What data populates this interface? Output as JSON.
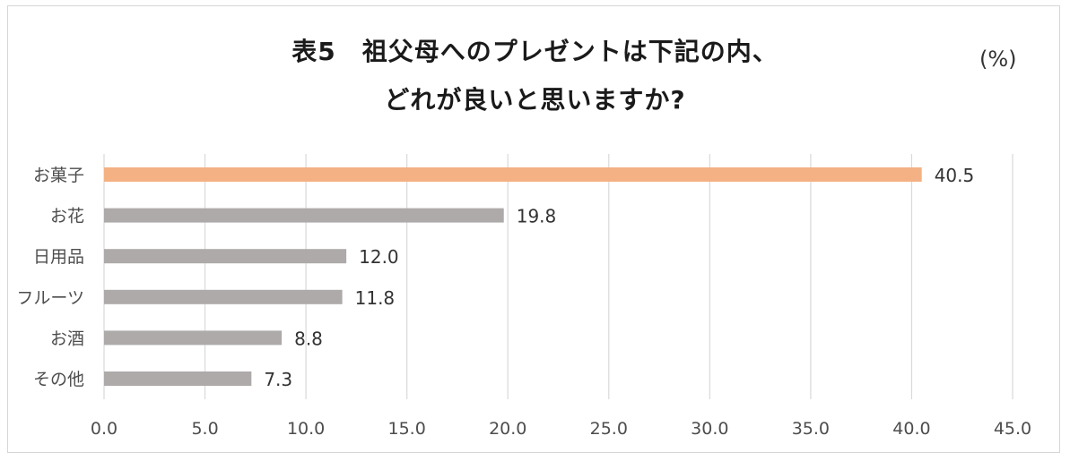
{
  "chart_data": {
    "type": "bar",
    "orientation": "horizontal",
    "title_line1": "表5　祖父母へのプレゼントは下記の内、",
    "title_line2": "どれが良いと思いますか?",
    "unit_label": "(%)",
    "categories": [
      "お菓子",
      "お花",
      "日用品",
      "フルーツ",
      "お酒",
      "その他"
    ],
    "values": [
      40.5,
      19.8,
      12.0,
      11.8,
      8.8,
      7.3
    ],
    "value_labels": [
      "40.5",
      "19.8",
      "12.0",
      "11.8",
      "8.8",
      "7.3"
    ],
    "xlim": [
      0,
      45
    ],
    "xticks": [
      0,
      5,
      10,
      15,
      20,
      25,
      30,
      35,
      40,
      45
    ],
    "xtick_labels": [
      "0.0",
      "5.0",
      "10.0",
      "15.0",
      "20.0",
      "25.0",
      "30.0",
      "35.0",
      "40.0",
      "45.0"
    ],
    "grid": "vertical",
    "colors": {
      "highlight": "#f4b183",
      "bar": "#aeaaaa",
      "grid": "#d9d9d9"
    },
    "highlight_index": 0
  }
}
